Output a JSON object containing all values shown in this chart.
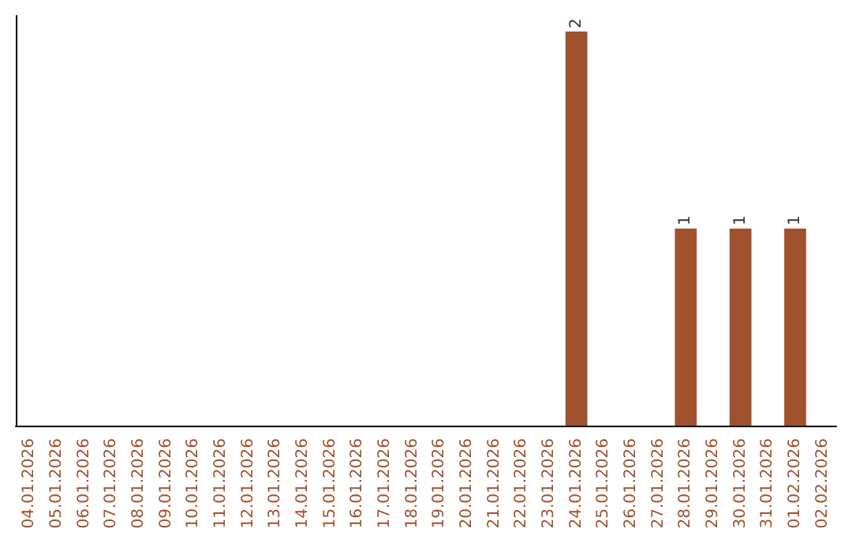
{
  "chart_data": {
    "type": "bar",
    "categories": [
      "04.01.2026",
      "05.01.2026",
      "06.01.2026",
      "07.01.2026",
      "08.01.2026",
      "09.01.2026",
      "10.01.2026",
      "11.01.2026",
      "12.01.2026",
      "13.01.2026",
      "14.01.2026",
      "15.01.2026",
      "16.01.2026",
      "17.01.2026",
      "18.01.2026",
      "19.01.2026",
      "20.01.2026",
      "21.01.2026",
      "22.01.2026",
      "23.01.2026",
      "24.01.2026",
      "25.01.2026",
      "26.01.2026",
      "27.01.2026",
      "28.01.2026",
      "29.01.2026",
      "30.01.2026",
      "31.01.2026",
      "01.02.2026",
      "02.02.2026"
    ],
    "values": [
      null,
      null,
      null,
      null,
      null,
      null,
      null,
      null,
      null,
      null,
      null,
      null,
      null,
      null,
      null,
      null,
      null,
      null,
      null,
      null,
      2,
      null,
      null,
      null,
      1,
      null,
      1,
      null,
      1,
      null
    ],
    "data_labels": true,
    "color": "#a0522d"
  }
}
